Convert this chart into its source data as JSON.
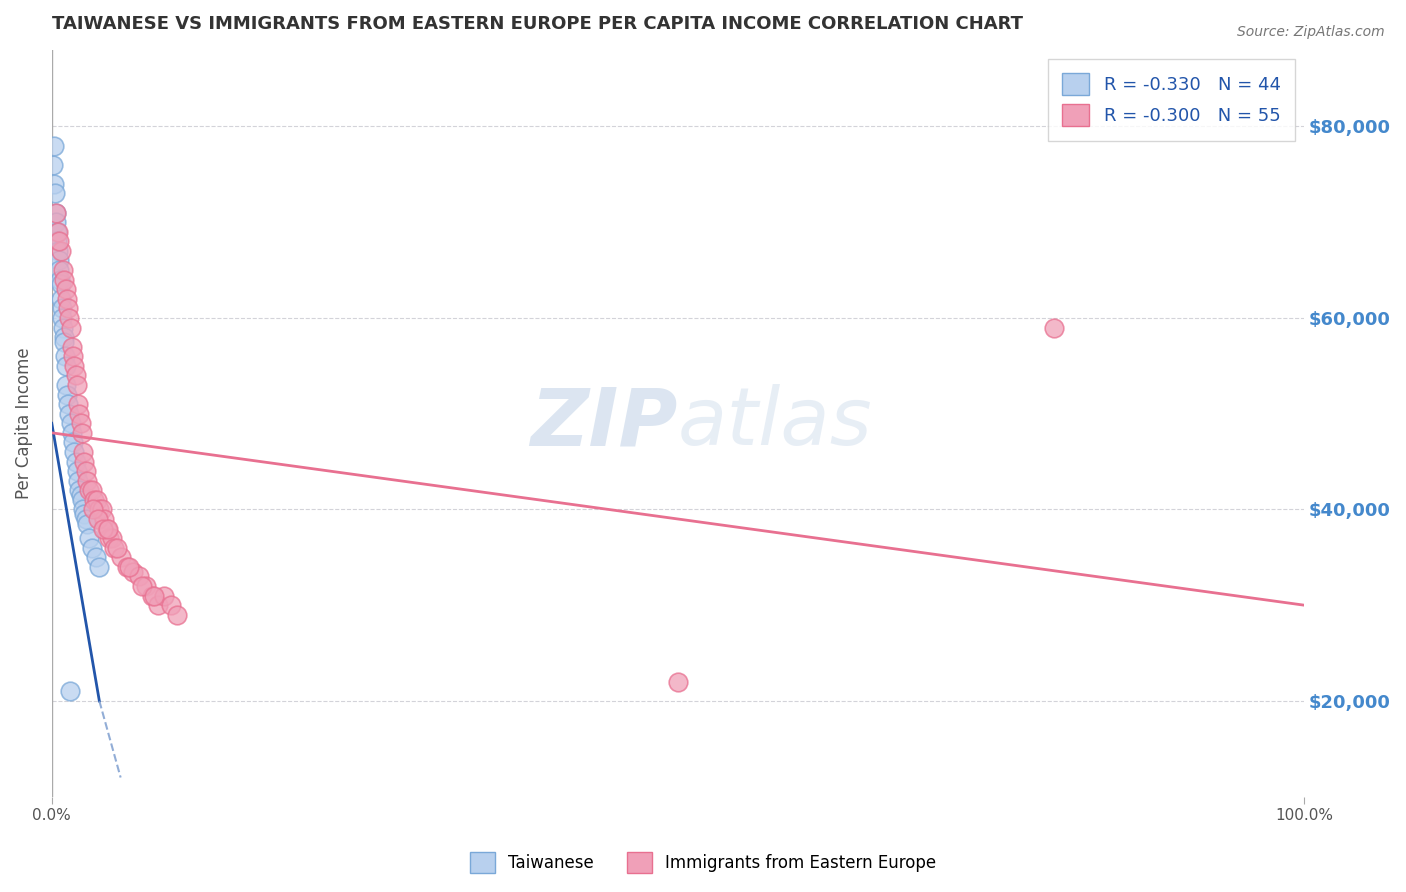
{
  "title": "TAIWANESE VS IMMIGRANTS FROM EASTERN EUROPE PER CAPITA INCOME CORRELATION CHART",
  "source": "Source: ZipAtlas.com",
  "ylabel": "Per Capita Income",
  "xlim": [
    0.0,
    100.0
  ],
  "ylim": [
    10000,
    88000
  ],
  "yticks": [
    20000,
    40000,
    60000,
    80000
  ],
  "ytick_labels": [
    "$20,000",
    "$40,000",
    "$60,000",
    "$80,000"
  ],
  "xtick_labels": [
    "0.0%",
    "100.0%"
  ],
  "bg_color": "#ffffff",
  "grid_color": "#c8c8d0",
  "watermark": "ZIPatlas",
  "taiwanese": {
    "color": "#7aa8d8",
    "fill_color": "#b8d0ee",
    "R": -0.33,
    "N": 44,
    "label": "Taiwanese",
    "x": [
      0.1,
      0.15,
      0.2,
      0.25,
      0.3,
      0.35,
      0.4,
      0.45,
      0.5,
      0.55,
      0.6,
      0.65,
      0.7,
      0.75,
      0.8,
      0.85,
      0.9,
      0.95,
      1.0,
      1.05,
      1.1,
      1.15,
      1.2,
      1.3,
      1.4,
      1.5,
      1.6,
      1.7,
      1.8,
      1.9,
      2.0,
      2.1,
      2.2,
      2.3,
      2.4,
      2.5,
      2.6,
      2.7,
      2.8,
      3.0,
      3.2,
      3.5,
      3.8,
      1.45
    ],
    "y": [
      76000,
      74000,
      78000,
      73000,
      71000,
      70000,
      69000,
      68000,
      67000,
      66000,
      65000,
      64000,
      63500,
      62000,
      61000,
      60000,
      59000,
      58000,
      57500,
      56000,
      55000,
      53000,
      52000,
      51000,
      50000,
      49000,
      48000,
      47000,
      46000,
      45000,
      44000,
      43000,
      42000,
      41500,
      41000,
      40000,
      39500,
      39000,
      38500,
      37000,
      36000,
      35000,
      34000,
      21000
    ]
  },
  "eastern_europe": {
    "color": "#e87090",
    "fill_color": "#f0a0b8",
    "R": -0.3,
    "N": 55,
    "label": "Immigrants from Eastern Europe",
    "x": [
      0.3,
      0.5,
      0.7,
      0.9,
      1.0,
      1.1,
      1.2,
      1.3,
      1.4,
      1.5,
      1.6,
      1.7,
      1.8,
      1.9,
      2.0,
      2.1,
      2.2,
      2.3,
      2.4,
      2.5,
      2.6,
      2.7,
      2.8,
      3.0,
      3.2,
      3.4,
      3.6,
      3.8,
      4.0,
      4.2,
      4.4,
      4.6,
      4.8,
      5.0,
      5.5,
      6.0,
      6.5,
      7.0,
      7.5,
      8.0,
      8.5,
      9.0,
      9.5,
      10.0,
      3.3,
      3.7,
      4.1,
      4.5,
      5.2,
      6.2,
      7.2,
      8.2,
      50.0,
      80.0,
      0.6
    ],
    "y": [
      71000,
      69000,
      67000,
      65000,
      64000,
      63000,
      62000,
      61000,
      60000,
      59000,
      57000,
      56000,
      55000,
      54000,
      53000,
      51000,
      50000,
      49000,
      48000,
      46000,
      45000,
      44000,
      43000,
      42000,
      42000,
      41000,
      41000,
      40000,
      40000,
      39000,
      38000,
      37000,
      37000,
      36000,
      35000,
      34000,
      33500,
      33000,
      32000,
      31000,
      30000,
      31000,
      30000,
      29000,
      40000,
      39000,
      38000,
      38000,
      36000,
      34000,
      32000,
      31000,
      22000,
      59000,
      68000
    ]
  },
  "title_color": "#333333",
  "axis_color": "#555555",
  "tick_color_right": "#4488cc"
}
